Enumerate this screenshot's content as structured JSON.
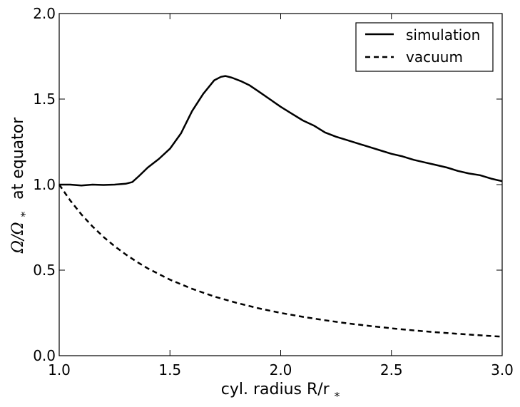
{
  "chart_data": {
    "type": "line",
    "title": "",
    "xlabel": "cyl. radius R/r",
    "xlabel_sub": "*",
    "ylabel": "Ω/Ω",
    "ylabel_sub": "*",
    "ylabel_suffix": "at equator",
    "xlim": [
      1.0,
      3.0
    ],
    "ylim": [
      0.0,
      2.0
    ],
    "xticks": [
      "1.0",
      "1.5",
      "2.0",
      "2.5",
      "3.0"
    ],
    "yticks": [
      "0.0",
      "0.5",
      "1.0",
      "1.5",
      "2.0"
    ],
    "legend_position": "top-right",
    "series": [
      {
        "name": "simulation",
        "style": "solid",
        "x": [
          1.0,
          1.05,
          1.1,
          1.15,
          1.2,
          1.25,
          1.3,
          1.33,
          1.36,
          1.4,
          1.45,
          1.5,
          1.55,
          1.6,
          1.65,
          1.7,
          1.73,
          1.75,
          1.78,
          1.82,
          1.86,
          1.9,
          1.95,
          2.0,
          2.05,
          2.1,
          2.15,
          2.2,
          2.25,
          2.3,
          2.35,
          2.4,
          2.45,
          2.5,
          2.55,
          2.6,
          2.65,
          2.7,
          2.75,
          2.8,
          2.85,
          2.9,
          2.95,
          3.0
        ],
        "y": [
          1.0,
          1.0,
          0.995,
          1.0,
          0.998,
          1.0,
          1.005,
          1.015,
          1.05,
          1.1,
          1.15,
          1.21,
          1.3,
          1.43,
          1.53,
          1.61,
          1.63,
          1.635,
          1.625,
          1.605,
          1.58,
          1.545,
          1.5,
          1.455,
          1.415,
          1.375,
          1.345,
          1.305,
          1.28,
          1.26,
          1.24,
          1.22,
          1.2,
          1.18,
          1.165,
          1.145,
          1.13,
          1.115,
          1.1,
          1.08,
          1.065,
          1.055,
          1.035,
          1.02
        ]
      },
      {
        "name": "vacuum",
        "style": "dashed",
        "x": [
          1.0,
          1.05,
          1.1,
          1.15,
          1.2,
          1.25,
          1.3,
          1.35,
          1.4,
          1.5,
          1.6,
          1.7,
          1.8,
          1.9,
          2.0,
          2.1,
          2.2,
          2.3,
          2.4,
          2.5,
          2.6,
          2.7,
          2.8,
          2.9,
          3.0
        ],
        "y": [
          1.0,
          0.907,
          0.826,
          0.756,
          0.694,
          0.64,
          0.592,
          0.549,
          0.51,
          0.444,
          0.391,
          0.346,
          0.309,
          0.277,
          0.25,
          0.227,
          0.207,
          0.189,
          0.174,
          0.16,
          0.148,
          0.137,
          0.128,
          0.119,
          0.111
        ]
      }
    ]
  }
}
